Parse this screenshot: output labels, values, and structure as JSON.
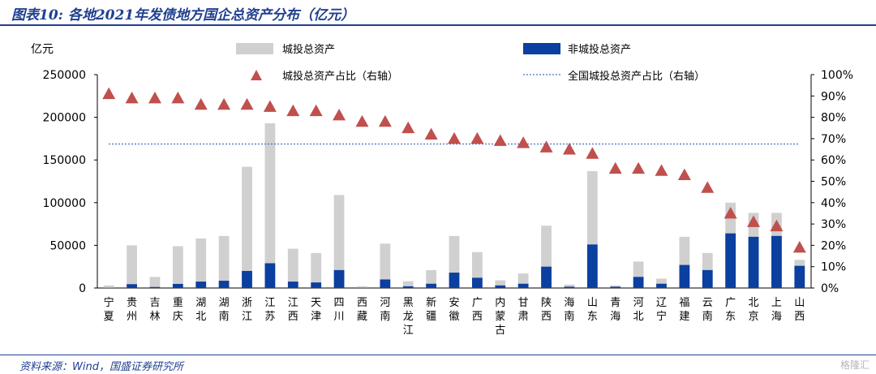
{
  "title": "图表10: 各地2021年发债地方国企总资产分布（亿元）",
  "source": "资料来源：Wind，国盛证券研究所",
  "watermark": "格隆汇",
  "colors": {
    "total_bar": "#d0d0d0",
    "non_urban_bar": "#0b3fa0",
    "ratio_marker": "#c0504d",
    "national_line": "#4472c4",
    "title": "#1f3f8f"
  },
  "chart_data": {
    "type": "bar",
    "title": "图表10: 各地2021年发债地方国企总资产分布（亿元）",
    "ylabel": "亿元",
    "ylim": [
      0,
      250000
    ],
    "y_ticks": [
      "0",
      "50000",
      "100000",
      "150000",
      "200000",
      "250000"
    ],
    "y2lim": [
      0,
      1.0
    ],
    "y2_ticks": [
      "0%",
      "10%",
      "20%",
      "30%",
      "40%",
      "50%",
      "60%",
      "70%",
      "80%",
      "90%",
      "100%"
    ],
    "grid": false,
    "legend_position": "top",
    "categories": [
      "宁夏",
      "贵州",
      "吉林",
      "重庆",
      "湖北",
      "湖南",
      "浙江",
      "江苏",
      "江西",
      "天津",
      "四川",
      "西藏",
      "河南",
      "黑龙江",
      "新疆",
      "安徽",
      "广西",
      "内蒙古",
      "甘肃",
      "陕西",
      "海南",
      "山东",
      "青海",
      "河北",
      "辽宁",
      "福建",
      "云南",
      "广东",
      "北京",
      "上海",
      "山西"
    ],
    "series": [
      {
        "name": "城投总资产",
        "type": "bar",
        "axis": "left",
        "values": [
          3000,
          50000,
          13000,
          49000,
          58000,
          61000,
          142000,
          193000,
          46000,
          41000,
          109000,
          2000,
          52000,
          8000,
          21000,
          61000,
          42000,
          9000,
          17000,
          73000,
          4000,
          137000,
          3000,
          31000,
          11000,
          60000,
          41000,
          100000,
          88000,
          88000,
          33000
        ]
      },
      {
        "name": "非城投总资产",
        "type": "bar",
        "axis": "left",
        "values": [
          300,
          4500,
          1200,
          4800,
          7500,
          8500,
          20000,
          29000,
          7500,
          6500,
          21000,
          400,
          10000,
          2000,
          5000,
          18000,
          12000,
          3000,
          5000,
          25000,
          1500,
          51000,
          1500,
          13000,
          5000,
          27000,
          21000,
          64000,
          60000,
          61000,
          26000
        ]
      },
      {
        "name": "城投总资产占比（右轴）",
        "type": "scatter",
        "axis": "right",
        "values": [
          0.91,
          0.89,
          0.89,
          0.89,
          0.86,
          0.86,
          0.86,
          0.85,
          0.83,
          0.83,
          0.81,
          0.78,
          0.78,
          0.75,
          0.72,
          0.7,
          0.7,
          0.69,
          0.68,
          0.66,
          0.65,
          0.63,
          0.56,
          0.56,
          0.55,
          0.53,
          0.47,
          0.35,
          0.31,
          0.29,
          0.19
        ]
      },
      {
        "name": "全国城投总资产占比（右轴）",
        "type": "line",
        "axis": "right",
        "value": 0.675
      }
    ]
  }
}
